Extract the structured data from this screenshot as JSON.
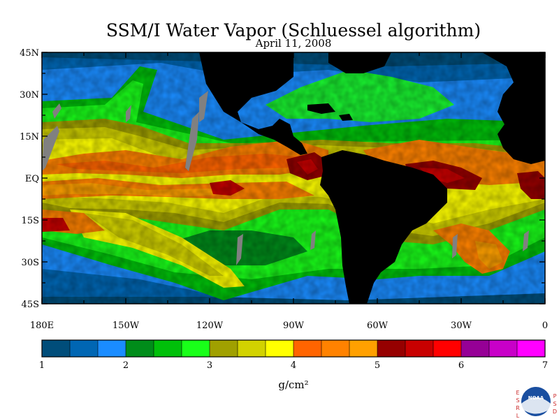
{
  "title": "SSM/I Water Vapor (Schluessel algorithm)",
  "subtitle": "April 11, 2008",
  "lat_labels": [
    "45N",
    "30N",
    "15N",
    "EQ",
    "15S",
    "30S",
    "45S"
  ],
  "lon_labels": [
    "180E",
    "150W",
    "120W",
    "90W",
    "60W",
    "30W",
    "0"
  ],
  "colorbar": {
    "tick_labels": [
      "1",
      "2",
      "3",
      "4",
      "5",
      "6",
      "7"
    ],
    "unit": "g/cm²",
    "min": 1,
    "max": 7,
    "colors": [
      "#004d7a",
      "#0066b3",
      "#1a8cff",
      "#008c1a",
      "#00c00a",
      "#19ff19",
      "#a0a000",
      "#d2d200",
      "#ffff00",
      "#ff6400",
      "#ff8200",
      "#ffa000",
      "#960000",
      "#c80000",
      "#ff0000",
      "#960096",
      "#c800c8",
      "#ff00ff"
    ]
  },
  "logo": {
    "left_letters": [
      "E",
      "S",
      "R",
      "L"
    ],
    "right_letters": [
      "P",
      "S",
      "D"
    ],
    "center_text": "NOAA"
  }
}
